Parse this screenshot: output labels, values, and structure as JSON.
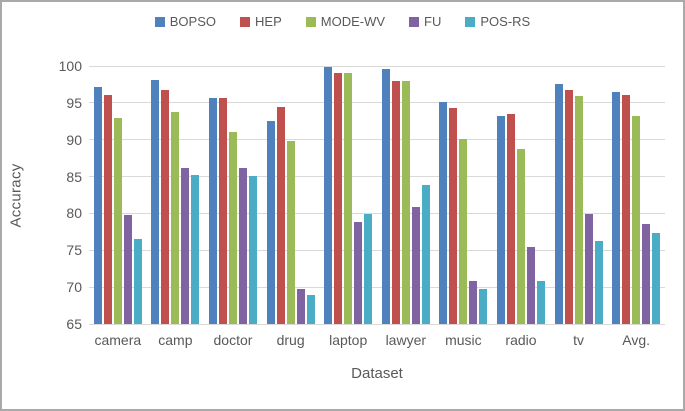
{
  "chart_data": {
    "type": "bar",
    "title": "",
    "xlabel": "Dataset",
    "ylabel": "Accuracy",
    "ylim": [
      65,
      100
    ],
    "yticks": [
      65,
      70,
      75,
      80,
      85,
      90,
      95,
      100
    ],
    "grid": true,
    "legend_position": "top",
    "categories": [
      "camera",
      "camp",
      "doctor",
      "drug",
      "laptop",
      "lawyer",
      "music",
      "radio",
      "tv",
      "Avg."
    ],
    "series": [
      {
        "name": "BOPSO",
        "color": "#4F81BD",
        "values": [
          97.2,
          98.1,
          95.7,
          92.6,
          99.9,
          99.6,
          95.1,
          93.2,
          97.5,
          96.5
        ]
      },
      {
        "name": "HEP",
        "color": "#C0504D",
        "values": [
          96.0,
          96.7,
          95.7,
          94.4,
          99.0,
          97.9,
          94.3,
          93.5,
          96.8,
          96.0
        ]
      },
      {
        "name": "MODE-WV",
        "color": "#9BBB59",
        "values": [
          92.9,
          93.8,
          91.1,
          89.8,
          99.0,
          97.9,
          90.1,
          88.7,
          95.9,
          93.2
        ]
      },
      {
        "name": "FU",
        "color": "#8064A2",
        "values": [
          79.8,
          86.1,
          86.1,
          69.7,
          78.9,
          80.9,
          70.8,
          75.4,
          79.9,
          78.6
        ]
      },
      {
        "name": "POS-RS",
        "color": "#4BACC6",
        "values": [
          76.5,
          85.2,
          85.1,
          69.0,
          79.9,
          83.9,
          69.7,
          70.9,
          76.2,
          77.3
        ]
      }
    ]
  },
  "colors": {
    "text": "#595959",
    "gridline": "#D9D9D9",
    "frame_border": "#A9A9A9",
    "background": "#FFFFFF"
  }
}
